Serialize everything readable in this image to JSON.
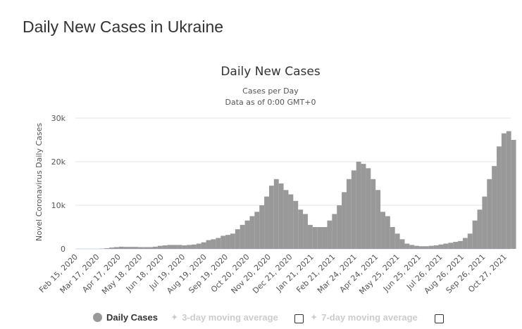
{
  "page_title": "Daily New Cases in Ukraine",
  "chart_data": {
    "type": "bar",
    "title": "Daily New Cases",
    "subtitle": [
      "Cases per Day",
      "Data as of 0:00 GMT+0"
    ],
    "ylabel": "Novel Coronavirus Daily Cases",
    "xlabel": "",
    "ylim": [
      0,
      30000
    ],
    "y_ticks": [
      "0",
      "10k",
      "20k",
      "30k"
    ],
    "y_tick_values": [
      0,
      10000,
      20000,
      30000
    ],
    "grid": true,
    "x_start": "Feb 15, 2020",
    "x_step_days": 7,
    "x_tick_labels": [
      "Feb 15, 2020",
      "Mar 17, 2020",
      "Apr 17, 2020",
      "May 18, 2020",
      "Jun 18, 2020",
      "Jul 19, 2020",
      "Aug 19, 2020",
      "Sep 19, 2020",
      "Oct 20, 2020",
      "Nov 20, 2020",
      "Dec 21, 2020",
      "Jan 21, 2021",
      "Feb 21, 2021",
      "Mar 24, 2021",
      "Apr 24, 2021",
      "May 25, 2021",
      "Jun 25, 2021",
      "Jul 26, 2021",
      "Aug 26, 2021",
      "Sep 26, 2021",
      "Oct 27, 2021"
    ],
    "series": [
      {
        "name": "Daily Cases",
        "color": "#999999",
        "values": [
          0,
          0,
          0,
          0,
          0,
          50,
          150,
          300,
          400,
          500,
          450,
          450,
          450,
          400,
          400,
          400,
          500,
          700,
          800,
          900,
          900,
          900,
          800,
          900,
          1000,
          1200,
          1500,
          2000,
          2200,
          2500,
          3000,
          3200,
          3500,
          4500,
          5500,
          6500,
          7500,
          8500,
          10000,
          12000,
          14500,
          16000,
          15000,
          13500,
          12500,
          11000,
          9000,
          8000,
          5500,
          5000,
          5000,
          5000,
          6500,
          8000,
          10000,
          13000,
          16000,
          18000,
          20000,
          19500,
          18500,
          16000,
          13500,
          8500,
          7500,
          5000,
          3500,
          2200,
          1200,
          900,
          700,
          600,
          600,
          700,
          800,
          1000,
          1200,
          1400,
          1600,
          1800,
          2500,
          3500,
          6500,
          9000,
          12000,
          16000,
          19000,
          23500,
          26500,
          27000,
          25000
        ]
      }
    ],
    "legend": {
      "position": "bottom",
      "items": [
        {
          "label": "Daily Cases",
          "active": true,
          "color": "#999999"
        },
        {
          "label": "3-day moving average",
          "active": false,
          "color": "#cccccc"
        },
        {
          "label": "7-day moving average",
          "active": false,
          "color": "#cccccc"
        }
      ]
    }
  }
}
